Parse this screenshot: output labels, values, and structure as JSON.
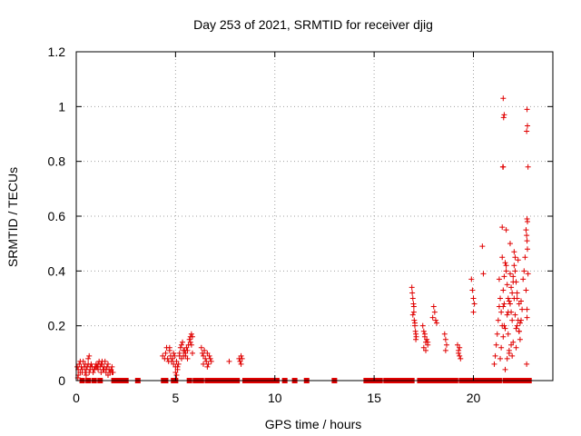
{
  "chart_data": {
    "type": "scatter",
    "title": "Day 253 of 2021, SRMTID for receiver djig",
    "xlabel": "GPS time / hours",
    "ylabel": "SRMTID / TECUs",
    "xlim": [
      0,
      24
    ],
    "ylim": [
      0,
      1.2
    ],
    "xticks": [
      0,
      5,
      10,
      15,
      20
    ],
    "xtick_labels": [
      "0",
      "5",
      "10",
      "15",
      "20"
    ],
    "yticks": [
      0,
      0.2,
      0.4,
      0.6,
      0.8,
      1.0,
      1.2
    ],
    "ytick_labels": [
      "0",
      "0.2",
      "0.4",
      "0.6",
      "0.8",
      "1",
      "1.2"
    ],
    "grid": true,
    "marker": "+",
    "series": [
      {
        "name": "SRMTID",
        "color": "#e00000",
        "x": [
          0.05,
          0.1,
          0.15,
          0.2,
          0.25,
          0.3,
          0.35,
          0.4,
          0.45,
          0.5,
          0.55,
          0.6,
          0.65,
          0.7,
          0.75,
          0.8,
          0.85,
          0.9,
          0.95,
          1.0,
          1.05,
          1.1,
          1.15,
          1.2,
          1.25,
          1.3,
          1.35,
          1.4,
          1.45,
          1.5,
          1.55,
          1.6,
          1.65,
          1.7,
          1.75,
          1.8,
          1.85,
          0.1,
          0.3,
          0.5,
          0.7,
          0.9,
          1.1,
          1.3,
          1.5,
          1.7,
          0.2,
          0.6,
          1.0,
          1.4,
          1.8,
          0.65,
          0.08,
          0.45,
          1.25,
          1.6,
          4.35,
          4.45,
          4.5,
          4.55,
          4.6,
          4.65,
          4.7,
          4.75,
          4.8,
          4.85,
          4.9,
          4.95,
          5.0,
          5.05,
          5.1,
          5.15,
          5.2,
          5.25,
          5.3,
          5.35,
          5.4,
          5.45,
          5.5,
          5.55,
          5.6,
          5.65,
          5.7,
          5.75,
          5.8,
          5.85,
          5.75,
          5.8,
          5.85,
          5.2,
          5.3,
          5.4,
          5.0,
          5.05,
          5.1,
          4.7,
          4.9,
          5.6,
          5.5,
          6.3,
          6.35,
          6.4,
          6.45,
          6.5,
          6.55,
          6.6,
          6.65,
          6.7,
          6.75,
          6.8,
          6.4,
          6.6,
          7.7,
          8.2,
          8.25,
          8.3,
          8.35,
          8.3,
          16.9,
          16.92,
          16.95,
          16.98,
          17.0,
          17.02,
          17.05,
          17.08,
          17.1,
          17.12,
          17.0,
          16.95,
          17.05,
          17.1,
          17.45,
          17.5,
          17.55,
          17.6,
          17.65,
          17.7,
          17.5,
          17.6,
          17.7,
          17.55,
          18.0,
          18.05,
          18.1,
          18.15,
          17.95,
          18.55,
          18.6,
          18.65,
          18.6,
          19.2,
          19.25,
          19.3,
          19.35,
          19.25,
          19.3,
          19.9,
          19.95,
          20.0,
          20.05,
          20.0,
          20.45,
          20.5,
          21.05,
          21.1,
          21.15,
          21.2,
          21.25,
          21.3,
          21.35,
          21.4,
          21.45,
          21.5,
          21.55,
          21.6,
          21.65,
          21.7,
          21.75,
          21.8,
          21.85,
          21.9,
          21.95,
          22.0,
          22.05,
          22.1,
          22.15,
          22.2,
          22.25,
          22.3,
          22.35,
          22.4,
          22.45,
          22.5,
          22.55,
          22.6,
          22.65,
          22.7,
          21.4,
          21.5,
          21.6,
          21.7,
          21.8,
          21.9,
          22.0,
          22.1,
          22.2,
          22.3,
          21.3,
          21.55,
          21.75,
          21.95,
          22.15,
          22.35,
          21.45,
          21.65,
          21.85,
          22.05,
          22.25,
          21.35,
          21.6,
          21.8,
          22.0,
          22.2,
          22.4,
          21.5,
          21.7,
          21.9,
          22.1,
          22.3,
          21.45,
          21.65,
          21.85,
          22.05,
          21.55,
          21.75,
          21.95,
          22.15,
          21.5,
          21.52,
          21.48,
          21.55,
          21.5,
          22.7,
          22.72,
          22.68,
          22.75,
          22.7,
          22.72,
          22.65,
          22.68,
          22.7,
          22.72,
          22.75,
          22.7,
          22.68
        ],
        "y": [
          0.05,
          0.04,
          0.06,
          0.03,
          0.05,
          0.04,
          0.07,
          0.05,
          0.06,
          0.04,
          0.05,
          0.08,
          0.03,
          0.04,
          0.06,
          0.05,
          0.03,
          0.04,
          0.05,
          0.06,
          0.05,
          0.04,
          0.07,
          0.05,
          0.03,
          0.06,
          0.04,
          0.05,
          0.07,
          0.03,
          0.05,
          0.06,
          0.04,
          0.03,
          0.04,
          0.05,
          0.03,
          0.02,
          0.03,
          0.02,
          0.05,
          0.04,
          0.06,
          0.07,
          0.04,
          0.03,
          0.07,
          0.06,
          0.05,
          0.04,
          0.03,
          0.09,
          0.01,
          0.03,
          0.06,
          0.02,
          0.09,
          0.08,
          0.1,
          0.12,
          0.08,
          0.07,
          0.11,
          0.09,
          0.07,
          0.08,
          0.06,
          0.09,
          0.05,
          0.07,
          0.04,
          0.06,
          0.1,
          0.12,
          0.13,
          0.14,
          0.09,
          0.11,
          0.1,
          0.12,
          0.11,
          0.13,
          0.15,
          0.16,
          0.17,
          0.16,
          0.14,
          0.13,
          0.1,
          0.09,
          0.08,
          0.11,
          0.03,
          0.02,
          0.05,
          0.12,
          0.1,
          0.08,
          0.09,
          0.12,
          0.1,
          0.09,
          0.11,
          0.08,
          0.07,
          0.1,
          0.06,
          0.09,
          0.08,
          0.07,
          0.06,
          0.05,
          0.07,
          0.08,
          0.07,
          0.09,
          0.08,
          0.06,
          0.34,
          0.32,
          0.3,
          0.28,
          0.25,
          0.22,
          0.2,
          0.18,
          0.17,
          0.16,
          0.27,
          0.24,
          0.21,
          0.15,
          0.2,
          0.18,
          0.16,
          0.14,
          0.15,
          0.13,
          0.12,
          0.11,
          0.14,
          0.17,
          0.27,
          0.25,
          0.22,
          0.21,
          0.23,
          0.17,
          0.15,
          0.13,
          0.11,
          0.13,
          0.11,
          0.09,
          0.08,
          0.1,
          0.12,
          0.37,
          0.33,
          0.3,
          0.28,
          0.25,
          0.49,
          0.39,
          0.06,
          0.09,
          0.13,
          0.17,
          0.22,
          0.27,
          0.3,
          0.25,
          0.2,
          0.33,
          0.38,
          0.43,
          0.4,
          0.35,
          0.3,
          0.29,
          0.28,
          0.25,
          0.32,
          0.38,
          0.42,
          0.45,
          0.36,
          0.3,
          0.22,
          0.18,
          0.15,
          0.22,
          0.26,
          0.37,
          0.4,
          0.45,
          0.33,
          0.23,
          0.12,
          0.16,
          0.19,
          0.08,
          0.11,
          0.13,
          0.14,
          0.24,
          0.2,
          0.18,
          0.37,
          0.28,
          0.25,
          0.22,
          0.19,
          0.21,
          0.56,
          0.55,
          0.5,
          0.47,
          0.44,
          0.08,
          0.04,
          0.1,
          0.36,
          0.32,
          0.29,
          0.27,
          0.24,
          0.34,
          0.4,
          0.28,
          0.45,
          0.42,
          0.39,
          0.3,
          0.2,
          0.17,
          0.09,
          0.12,
          1.03,
          0.96,
          0.78,
          0.97,
          0.78,
          0.99,
          0.93,
          0.91,
          0.78,
          0.59,
          0.58,
          0.55,
          0.53,
          0.51,
          0.48,
          0.39,
          0.26,
          0.06
        ]
      }
    ],
    "zero_markers": {
      "x": [
        0.3,
        0.6,
        0.9,
        1.2,
        1.9,
        2.0,
        2.1,
        2.2,
        2.3,
        2.4,
        2.5,
        3.1,
        4.4,
        4.5,
        4.9,
        5.0,
        5.7,
        6.0,
        6.1,
        6.2,
        6.3,
        6.6,
        6.7,
        6.8,
        6.9,
        7.0,
        7.1,
        7.2,
        7.3,
        7.4,
        7.5,
        7.6,
        7.8,
        7.9,
        8.0,
        8.1,
        8.5,
        8.6,
        8.7,
        8.8,
        8.9,
        9.0,
        9.1,
        9.2,
        9.3,
        9.5,
        9.7,
        9.9,
        10.1,
        10.5,
        11.0,
        11.6,
        13.0,
        14.6,
        14.7,
        14.8,
        14.9,
        15.0,
        15.1,
        15.2,
        15.3,
        15.6,
        15.7,
        15.8,
        15.9,
        16.0,
        16.1,
        16.2,
        16.3,
        16.4,
        16.5,
        16.6,
        16.7,
        16.8,
        16.9,
        17.3,
        17.4,
        17.5,
        17.6,
        17.7,
        17.8,
        17.9,
        18.0,
        18.1,
        18.2,
        18.3,
        18.4,
        18.5,
        18.6,
        18.7,
        18.8,
        18.9,
        19.0,
        19.1,
        19.4,
        19.5,
        19.6,
        19.7,
        19.8,
        19.9,
        20.0,
        20.1,
        20.2,
        20.3,
        20.4,
        20.5,
        20.6,
        20.7,
        20.8,
        20.9,
        21.0,
        21.1,
        21.2,
        21.3,
        21.6,
        21.7,
        21.8,
        21.9,
        22.0,
        22.1,
        22.2,
        22.3,
        22.4,
        22.5,
        22.6,
        22.7,
        22.8
      ],
      "y": 0
    }
  }
}
